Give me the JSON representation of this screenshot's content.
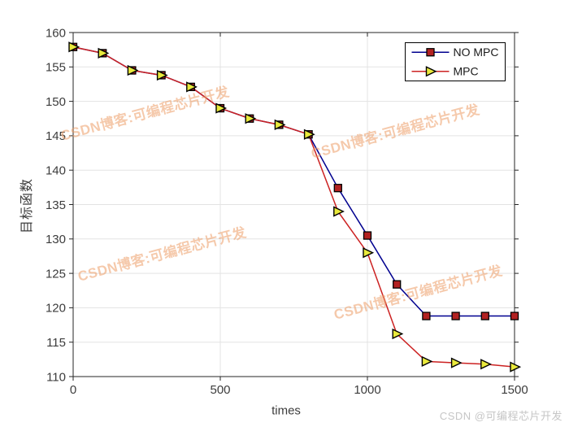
{
  "figure": {
    "credit": "CSDN @可编程芯片开发",
    "watermark": {
      "text": "CSDN博客:可编程芯片开发",
      "color": "#ED9E68",
      "opacity": 0.55
    },
    "background": "#FFFFFF"
  },
  "chart_data": {
    "type": "line",
    "x": [
      0,
      100,
      200,
      300,
      400,
      500,
      600,
      700,
      800,
      900,
      1000,
      1100,
      1200,
      1300,
      1400,
      1500
    ],
    "series": [
      {
        "name": "NO MPC",
        "line_color": "#00008F",
        "marker": "square",
        "marker_fill": "#B22222",
        "marker_edge": "#000000",
        "values": [
          157.9,
          157.0,
          154.5,
          153.8,
          152.1,
          149.0,
          147.5,
          146.6,
          145.2,
          137.4,
          130.5,
          123.4,
          118.8,
          118.8,
          118.8,
          118.8
        ]
      },
      {
        "name": "MPC",
        "line_color": "#CC2222",
        "marker": "triangle-right",
        "marker_fill": "#E9E93C",
        "marker_edge": "#000000",
        "values": [
          157.9,
          157.0,
          154.5,
          153.8,
          152.1,
          149.0,
          147.5,
          146.6,
          145.2,
          134.0,
          128.0,
          116.2,
          112.2,
          112.0,
          111.8,
          111.4
        ]
      }
    ],
    "title": "",
    "xlabel": "times",
    "ylabel": "目标函数",
    "xlim": [
      0,
      1500
    ],
    "ylim": [
      110,
      160
    ],
    "xticks": [
      0,
      500,
      1000,
      1500
    ],
    "yticks": [
      110,
      115,
      120,
      125,
      130,
      135,
      140,
      145,
      150,
      155,
      160
    ],
    "grid": true,
    "legend": {
      "position": "top-right",
      "entries": [
        "NO MPC",
        "MPC"
      ]
    },
    "axis_color": "#262626",
    "grid_color": "#E3E3E3",
    "tick_label_color": "#3C3C3C"
  }
}
